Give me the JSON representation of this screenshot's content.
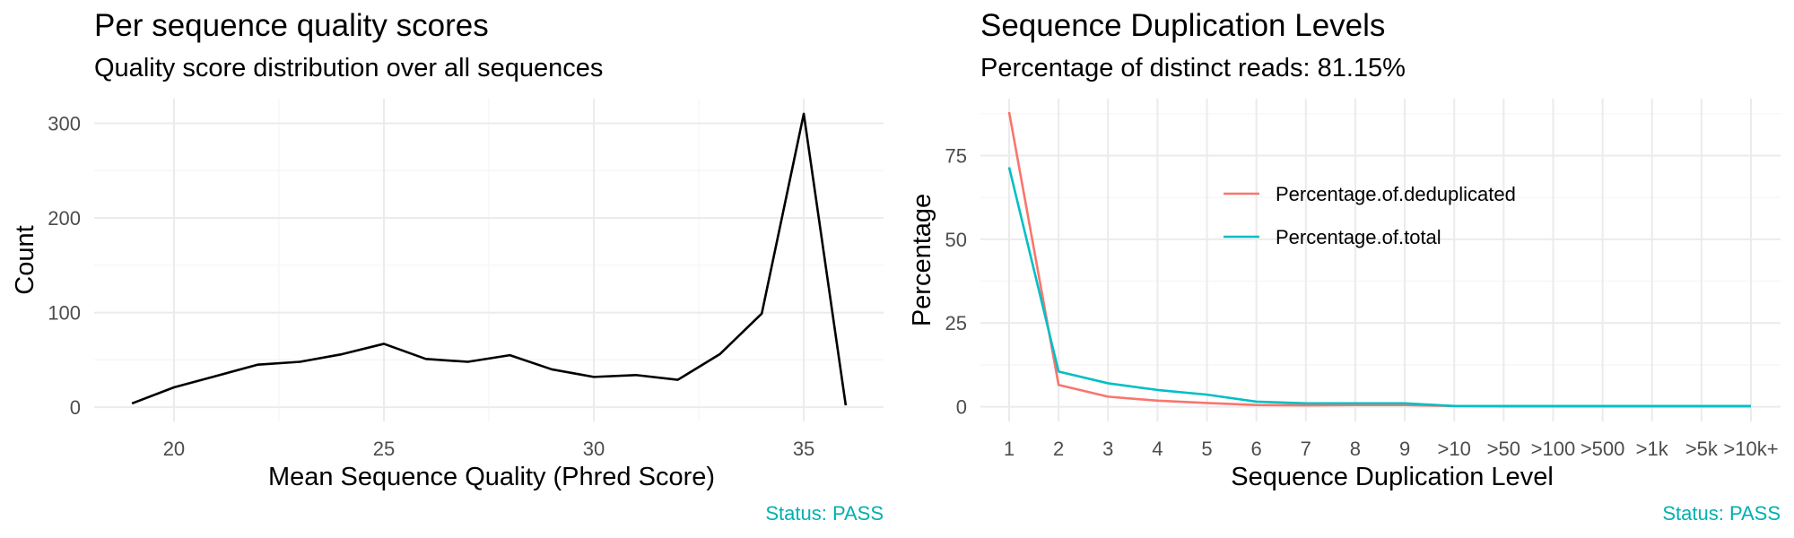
{
  "chart_data": [
    {
      "type": "line",
      "title": "Per sequence quality scores",
      "subtitle": "Quality score distribution over all sequences",
      "xlabel": "Mean Sequence Quality (Phred Score)",
      "ylabel": "Count",
      "x_ticks": [
        "20",
        "25",
        "30",
        "35"
      ],
      "y_ticks": [
        "0",
        "100",
        "200",
        "300"
      ],
      "xlim": [
        18.1,
        36.9
      ],
      "ylim": [
        -15,
        326
      ],
      "grid": true,
      "status": "Status: PASS",
      "series": [
        {
          "x": [
            19,
            20,
            21,
            22,
            23,
            24,
            25,
            26,
            27,
            28,
            29,
            30,
            31,
            32,
            33,
            34,
            35,
            36
          ],
          "y": [
            4,
            21,
            33,
            45,
            48,
            56,
            67,
            51,
            48,
            55,
            40,
            32,
            34,
            29,
            56,
            99,
            310,
            2
          ],
          "color": "#000000"
        }
      ]
    },
    {
      "type": "line",
      "title": "Sequence Duplication Levels",
      "subtitle": "Percentage of distinct reads: 81.15%",
      "xlabel": "Sequence Duplication Level",
      "ylabel": "Percentage",
      "categories": [
        "1",
        "2",
        "3",
        "4",
        "5",
        "6",
        "7",
        "8",
        "9",
        ">10",
        ">50",
        ">100",
        ">500",
        ">1k",
        ">5k",
        ">10k+"
      ],
      "y_ticks": [
        "0",
        "25",
        "50",
        "75"
      ],
      "ylim": [
        -4.4,
        92
      ],
      "grid": true,
      "legend_position": "inside-top-center",
      "status": "Status: PASS",
      "series": [
        {
          "name": "Percentage.of.deduplicated",
          "color": "#F8766D",
          "values": [
            88,
            6.5,
            3,
            1.8,
            1.1,
            0.5,
            0.4,
            0.5,
            0.5,
            0.2,
            0.1,
            0.1,
            0.1,
            0.1,
            0.1,
            0.1
          ]
        },
        {
          "name": "Percentage.of.total",
          "color": "#00BFC4",
          "values": [
            71.5,
            10.5,
            7,
            5,
            3.6,
            1.5,
            1,
            1,
            1,
            0.2,
            0.2,
            0.2,
            0.2,
            0.2,
            0.2,
            0.2
          ]
        }
      ]
    }
  ]
}
